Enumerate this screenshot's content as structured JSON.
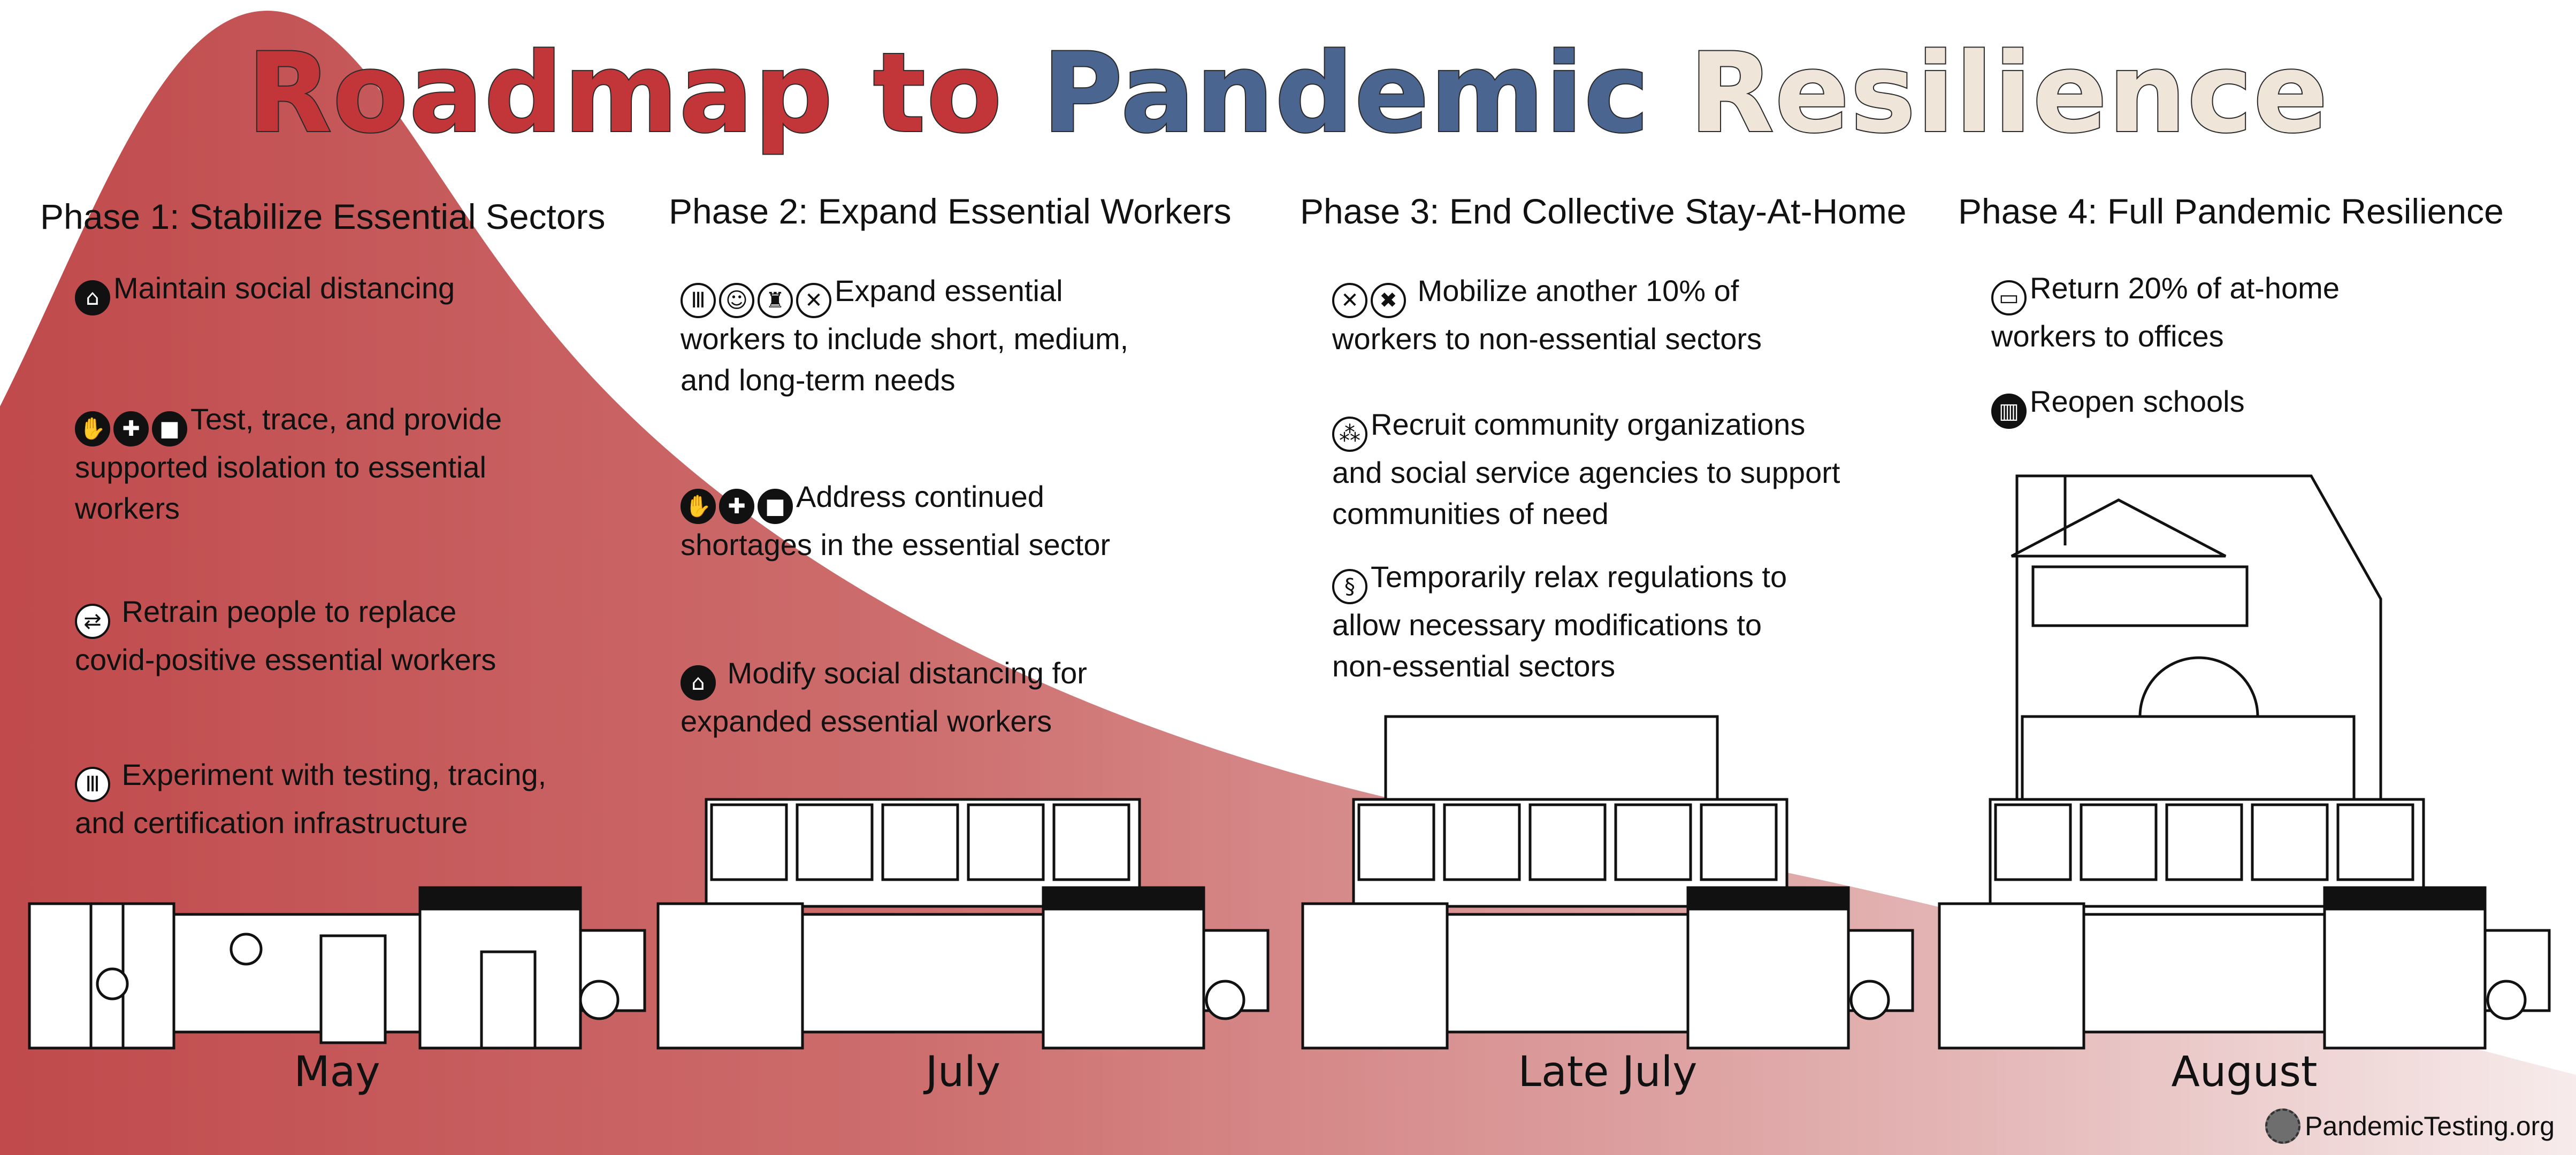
{
  "title": {
    "word1": "Roadmap to",
    "word2": "Pandemic",
    "word3": "Resilience",
    "color1": "#c2363a",
    "color2": "#4a6590",
    "color3": "#efe6d9"
  },
  "colors": {
    "curve": "#c25050",
    "curve_light": "#efd8d8"
  },
  "phases": [
    {
      "heading": "Phase 1: Stabilize Essential Sectors",
      "month": "May",
      "items": [
        {
          "icons": [
            "home-icon"
          ],
          "text": "Maintain social distancing"
        },
        {
          "icons": [
            "hand-icon",
            "medical-heart-icon",
            "box-icon"
          ],
          "text": "Test, trace, and provide\nsupported isolation to essential\nworkers"
        },
        {
          "icons": [
            "retrain-icon"
          ],
          "text": " Retrain people to replace\ncovid-positive essential workers"
        },
        {
          "icons": [
            "test-tubes-icon"
          ],
          "text": " Experiment with testing, tracing,\nand certification infrastructure"
        }
      ]
    },
    {
      "heading": "Phase 2: Expand Essential Workers",
      "month": "July",
      "items": [
        {
          "icons": [
            "test-tubes-icon",
            "childcare-icon",
            "cleaning-icon",
            "food-service-icon"
          ],
          "text": "Expand essential\nworkers to include short, medium,\nand long-term needs"
        },
        {
          "icons": [
            "hand-icon",
            "medical-heart-icon",
            "box-icon"
          ],
          "text": "Address continued\nshortages in the essential sector"
        },
        {
          "icons": [
            "home-icon"
          ],
          "text": " Modify social distancing for\nexpanded essential workers"
        }
      ]
    },
    {
      "heading": "Phase 3: End Collective Stay-At-Home",
      "month": "Late July",
      "items": [
        {
          "icons": [
            "food-service-icon",
            "tools-icon"
          ],
          "text": " Mobilize another 10% of\nworkers to non-essential sectors"
        },
        {
          "icons": [
            "community-icon"
          ],
          "text": "Recruit community organizations\nand social service agencies to support\ncommunities of need"
        },
        {
          "icons": [
            "regulation-icon"
          ],
          "text": "Temporarily relax regulations to\nallow necessary modifications to\nnon-essential sectors"
        }
      ]
    },
    {
      "heading": "Phase 4: Full Pandemic Resilience",
      "month": "August",
      "items": [
        {
          "icons": [
            "laptop-icon"
          ],
          "text": "Return 20% of at-home\nworkers to offices"
        },
        {
          "icons": [
            "book-icon"
          ],
          "text": "Reopen schools"
        }
      ]
    }
  ],
  "footer": {
    "site": "PandemicTesting.org",
    "logo_icon": "virus-logo-icon"
  }
}
